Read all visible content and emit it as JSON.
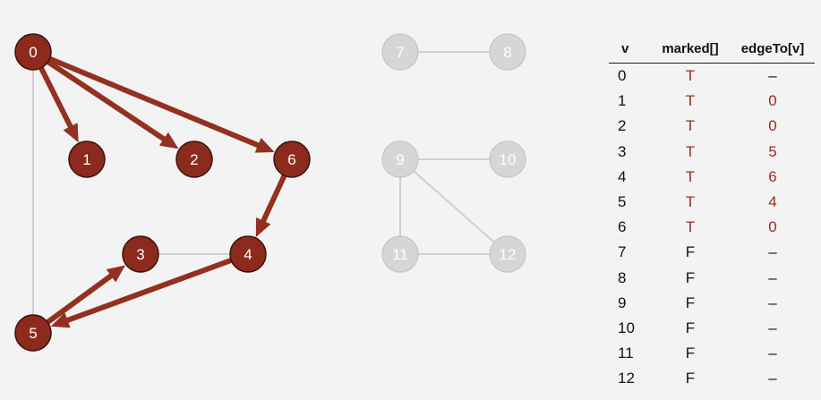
{
  "colors": {
    "visited_fill": "#8c2a1d",
    "visited_edge": "#93301f",
    "unvisited_fill": "#d6d6d6",
    "unvisited_stroke": "#c5c5c5",
    "unvisited_label": "#ffffff",
    "plain_edge": "#cfcfcf",
    "marked_true_text": "#9b2b1f"
  },
  "graph": {
    "nodes": [
      {
        "id": "0",
        "visited": true
      },
      {
        "id": "1",
        "visited": true
      },
      {
        "id": "2",
        "visited": true
      },
      {
        "id": "3",
        "visited": true
      },
      {
        "id": "4",
        "visited": true
      },
      {
        "id": "5",
        "visited": true
      },
      {
        "id": "6",
        "visited": true
      },
      {
        "id": "7",
        "visited": false
      },
      {
        "id": "8",
        "visited": false
      },
      {
        "id": "9",
        "visited": false
      },
      {
        "id": "10",
        "visited": false
      },
      {
        "id": "11",
        "visited": false
      },
      {
        "id": "12",
        "visited": false
      }
    ],
    "edges": [
      {
        "from": "0",
        "to": "5",
        "tree": false
      },
      {
        "from": "3",
        "to": "4",
        "tree": false
      },
      {
        "from": "7",
        "to": "8",
        "tree": false
      },
      {
        "from": "9",
        "to": "10",
        "tree": false
      },
      {
        "from": "9",
        "to": "11",
        "tree": false
      },
      {
        "from": "9",
        "to": "12",
        "tree": false
      },
      {
        "from": "11",
        "to": "12",
        "tree": false
      },
      {
        "from": "0",
        "to": "1",
        "tree": true
      },
      {
        "from": "0",
        "to": "2",
        "tree": true
      },
      {
        "from": "0",
        "to": "6",
        "tree": true
      },
      {
        "from": "6",
        "to": "4",
        "tree": true
      },
      {
        "from": "4",
        "to": "5",
        "tree": true
      },
      {
        "from": "5",
        "to": "3",
        "tree": true
      }
    ]
  },
  "table": {
    "headers": {
      "v": "v",
      "marked": "marked[]",
      "edgeTo": "edgeTo[v]"
    },
    "rows": [
      {
        "v": "0",
        "marked": "T",
        "edgeTo": "–"
      },
      {
        "v": "1",
        "marked": "T",
        "edgeTo": "0"
      },
      {
        "v": "2",
        "marked": "T",
        "edgeTo": "0"
      },
      {
        "v": "3",
        "marked": "T",
        "edgeTo": "5"
      },
      {
        "v": "4",
        "marked": "T",
        "edgeTo": "6"
      },
      {
        "v": "5",
        "marked": "T",
        "edgeTo": "4"
      },
      {
        "v": "6",
        "marked": "T",
        "edgeTo": "0"
      },
      {
        "v": "7",
        "marked": "F",
        "edgeTo": "–"
      },
      {
        "v": "8",
        "marked": "F",
        "edgeTo": "–"
      },
      {
        "v": "9",
        "marked": "F",
        "edgeTo": "–"
      },
      {
        "v": "10",
        "marked": "F",
        "edgeTo": "–"
      },
      {
        "v": "11",
        "marked": "F",
        "edgeTo": "–"
      },
      {
        "v": "12",
        "marked": "F",
        "edgeTo": "–"
      }
    ]
  }
}
